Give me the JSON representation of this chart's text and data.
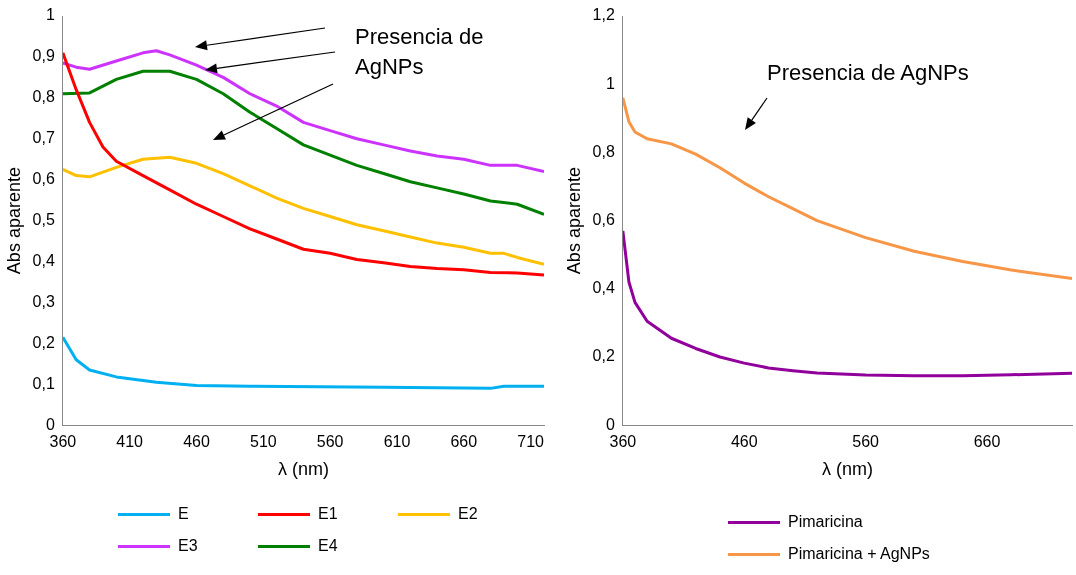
{
  "chart_data": [
    {
      "type": "line",
      "xlabel": "λ (nm)",
      "ylabel": "Abs aparente",
      "xlim": [
        360,
        720
      ],
      "xticks": [
        360,
        410,
        460,
        510,
        560,
        610,
        660,
        710
      ],
      "ylim": [
        0,
        1
      ],
      "yticks": [
        {
          "value": 0,
          "label": "0"
        },
        {
          "value": 0.1,
          "label": "0,1"
        },
        {
          "value": 0.2,
          "label": "0,2"
        },
        {
          "value": 0.3,
          "label": "0,3"
        },
        {
          "value": 0.4,
          "label": "0,4"
        },
        {
          "value": 0.5,
          "label": "0,5"
        },
        {
          "value": 0.6,
          "label": "0,6"
        },
        {
          "value": 0.7,
          "label": "0,7"
        },
        {
          "value": 0.8,
          "label": "0,8"
        },
        {
          "value": 0.9,
          "label": "0,9"
        },
        {
          "value": 1,
          "label": "1"
        }
      ],
      "grid": false,
      "legend": "bottom",
      "marker": "none",
      "line_style": "solid",
      "annotations": [
        "Presencia de AgNPs"
      ],
      "series": [
        {
          "name": "E",
          "color": "#00b0f0",
          "x": [
            360,
            370,
            380,
            400,
            430,
            460,
            500,
            600,
            680,
            690,
            720
          ],
          "values": [
            0.215,
            0.16,
            0.135,
            0.118,
            0.105,
            0.097,
            0.095,
            0.093,
            0.09,
            0.095,
            0.095
          ]
        },
        {
          "name": "E1",
          "color": "#ff0000",
          "x": [
            360,
            370,
            380,
            390,
            400,
            420,
            440,
            460,
            480,
            500,
            520,
            540,
            560,
            580,
            600,
            620,
            640,
            660,
            680,
            700,
            720
          ],
          "values": [
            0.91,
            0.82,
            0.74,
            0.68,
            0.645,
            0.61,
            0.575,
            0.54,
            0.51,
            0.48,
            0.455,
            0.43,
            0.42,
            0.405,
            0.397,
            0.388,
            0.383,
            0.38,
            0.373,
            0.372,
            0.367
          ]
        },
        {
          "name": "E2",
          "color": "#ffc000",
          "x": [
            360,
            370,
            380,
            400,
            420,
            440,
            460,
            480,
            500,
            520,
            540,
            560,
            580,
            600,
            620,
            640,
            660,
            680,
            690,
            700,
            720
          ],
          "values": [
            0.625,
            0.61,
            0.607,
            0.63,
            0.65,
            0.655,
            0.64,
            0.615,
            0.585,
            0.555,
            0.53,
            0.51,
            0.49,
            0.475,
            0.46,
            0.445,
            0.435,
            0.42,
            0.42,
            0.41,
            0.393
          ]
        },
        {
          "name": "E3",
          "color": "#cc33ff",
          "x": [
            360,
            370,
            380,
            400,
            420,
            430,
            440,
            460,
            480,
            500,
            520,
            540,
            560,
            580,
            600,
            620,
            640,
            660,
            680,
            700,
            720
          ],
          "values": [
            0.885,
            0.875,
            0.87,
            0.89,
            0.91,
            0.915,
            0.905,
            0.88,
            0.85,
            0.81,
            0.78,
            0.74,
            0.72,
            0.7,
            0.685,
            0.67,
            0.658,
            0.65,
            0.635,
            0.635,
            0.62
          ]
        },
        {
          "name": "E4",
          "color": "#008000",
          "x": [
            360,
            380,
            400,
            420,
            440,
            460,
            480,
            500,
            520,
            540,
            560,
            580,
            600,
            620,
            640,
            660,
            680,
            700,
            720
          ],
          "values": [
            0.81,
            0.812,
            0.845,
            0.865,
            0.865,
            0.845,
            0.81,
            0.765,
            0.725,
            0.685,
            0.66,
            0.635,
            0.615,
            0.595,
            0.58,
            0.565,
            0.548,
            0.54,
            0.515
          ]
        }
      ]
    },
    {
      "type": "line",
      "xlabel": "λ (nm)",
      "ylabel": "Abs aparente",
      "xlim": [
        360,
        730
      ],
      "xticks": [
        360,
        460,
        560,
        660
      ],
      "ylim": [
        0,
        1.2
      ],
      "yticks": [
        {
          "value": 0,
          "label": "0"
        },
        {
          "value": 0.2,
          "label": "0,2"
        },
        {
          "value": 0.4,
          "label": "0,4"
        },
        {
          "value": 0.6,
          "label": "0,6"
        },
        {
          "value": 0.8,
          "label": "0,8"
        },
        {
          "value": 1,
          "label": "1"
        },
        {
          "value": 1.2,
          "label": "1,2"
        }
      ],
      "grid": false,
      "legend": "bottom",
      "marker": "none",
      "line_style": "solid",
      "annotations": [
        "Presencia de AgNPs"
      ],
      "series": [
        {
          "name": "Pimaricina",
          "color": "#92009c",
          "x": [
            360,
            365,
            370,
            380,
            400,
            420,
            440,
            460,
            480,
            500,
            520,
            560,
            600,
            640,
            680,
            730
          ],
          "values": [
            0.57,
            0.42,
            0.36,
            0.305,
            0.255,
            0.225,
            0.2,
            0.182,
            0.168,
            0.16,
            0.153,
            0.147,
            0.145,
            0.145,
            0.148,
            0.152
          ]
        },
        {
          "name": "Pimaricina + AgNPs",
          "color": "#f79646",
          "x": [
            360,
            365,
            370,
            380,
            400,
            420,
            440,
            460,
            480,
            500,
            520,
            560,
            600,
            640,
            680,
            730
          ],
          "values": [
            0.96,
            0.89,
            0.86,
            0.84,
            0.825,
            0.795,
            0.755,
            0.71,
            0.67,
            0.635,
            0.6,
            0.55,
            0.51,
            0.48,
            0.455,
            0.43
          ]
        }
      ]
    }
  ]
}
